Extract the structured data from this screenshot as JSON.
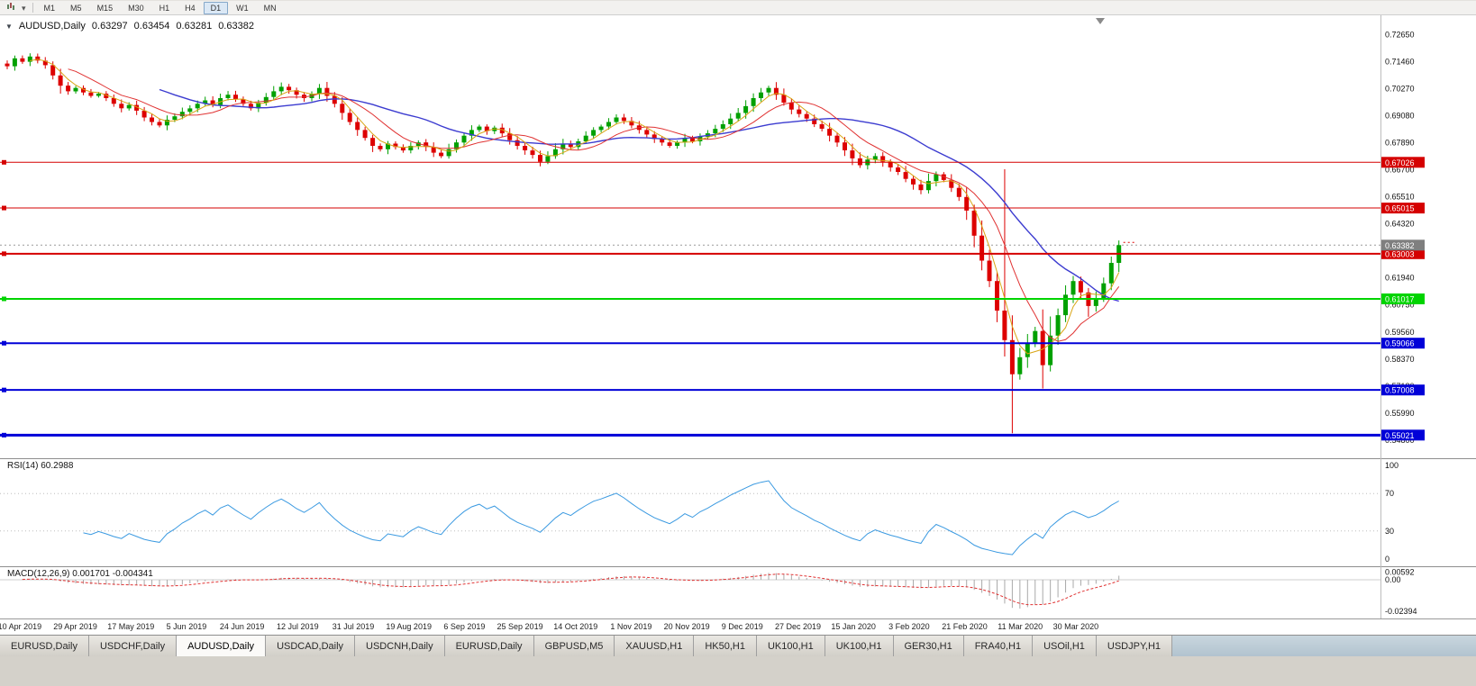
{
  "toolbar": {
    "timeframes": [
      "M1",
      "M5",
      "M15",
      "M30",
      "H1",
      "H4",
      "D1",
      "W1",
      "MN"
    ],
    "active_timeframe": "D1"
  },
  "header": {
    "symbol": "AUDUSD,Daily",
    "open": "0.63297",
    "high": "0.63454",
    "low": "0.63281",
    "close": "0.63382"
  },
  "price_axis": {
    "ticks": [
      "0.72650",
      "0.71460",
      "0.70270",
      "0.69080",
      "0.67890",
      "0.66700",
      "0.65510",
      "0.64320",
      "0.63130",
      "0.61940",
      "0.60750",
      "0.59560",
      "0.58370",
      "0.57180",
      "0.55990",
      "0.54800"
    ],
    "current_price": "0.63382"
  },
  "hlines": [
    {
      "price": 0.67026,
      "label": "0.67026",
      "color": "#d50000",
      "width": 1
    },
    {
      "price": 0.65015,
      "label": "0.65015",
      "color": "#d50000",
      "width": 1
    },
    {
      "price": 0.63003,
      "label": "0.63003",
      "color": "#d50000",
      "width": 2
    },
    {
      "price": 0.61017,
      "label": "0.61017",
      "color": "#00d400",
      "width": 2
    },
    {
      "price": 0.59066,
      "label": "0.59066",
      "color": "#0000d8",
      "width": 2
    },
    {
      "price": 0.57008,
      "label": "0.57008",
      "color": "#0000d8",
      "width": 2
    },
    {
      "price": 0.55021,
      "label": "0.55021",
      "color": "#0000d8",
      "width": 3
    }
  ],
  "rsi": {
    "label": "RSI(14) 60.2988",
    "axis_ticks": [
      "100",
      "70",
      "30",
      "0"
    ],
    "levels": [
      70,
      30
    ]
  },
  "macd": {
    "label": "MACD(12,26,9) 0.001701 -0.004341",
    "axis_ticks": [
      {
        "text": "0.00592",
        "value": 0.00592
      },
      {
        "text": "0.00",
        "value": 0
      },
      {
        "text": "-0.02394",
        "value": -0.02394
      }
    ]
  },
  "time_axis": {
    "labels": [
      "10 Apr 2019",
      "29 Apr 2019",
      "17 May 2019",
      "5 Jun 2019",
      "24 Jun 2019",
      "12 Jul 2019",
      "31 Jul 2019",
      "19 Aug 2019",
      "6 Sep 2019",
      "25 Sep 2019",
      "14 Oct 2019",
      "1 Nov 2019",
      "20 Nov 2019",
      "9 Dec 2019",
      "27 Dec 2019",
      "15 Jan 2020",
      "3 Feb 2020",
      "21 Feb 2020",
      "11 Mar 2020",
      "30 Mar 2020"
    ]
  },
  "tabs": {
    "items": [
      "EURUSD,Daily",
      "USDCHF,Daily",
      "AUDUSD,Daily",
      "USDCAD,Daily",
      "USDCNH,Daily",
      "EURUSD,Daily",
      "GBPUSD,M5",
      "XAUUSD,H1",
      "HK50,H1",
      "UK100,H1",
      "UK100,H1",
      "GER30,H1",
      "FRA40,H1",
      "USOil,H1",
      "USDJPY,H1"
    ],
    "active_index": 2
  },
  "colors": {
    "bull": "#00a000",
    "bear": "#dd0000",
    "ma_slow": "#3c3cd0",
    "ma_mid": "#e03232",
    "ma_fast": "#d9a514",
    "rsi": "#3b9ae1",
    "macd_hist": "#a9a9a9",
    "macd_signal": "#e03232",
    "price_badge": "#7f7f7f"
  },
  "chart_data": {
    "type": "candlestick",
    "symbol": "AUDUSD",
    "timeframe": "Daily",
    "title": "AUDUSD,Daily",
    "ohlc_display": [
      0.63297,
      0.63454,
      0.63281,
      0.63382
    ],
    "y_range": [
      0.548,
      0.7265
    ],
    "x_labels": [
      "10 Apr 2019",
      "29 Apr 2019",
      "17 May 2019",
      "5 Jun 2019",
      "24 Jun 2019",
      "12 Jul 2019",
      "31 Jul 2019",
      "19 Aug 2019",
      "6 Sep 2019",
      "25 Sep 2019",
      "14 Oct 2019",
      "1 Nov 2019",
      "20 Nov 2019",
      "9 Dec 2019",
      "27 Dec 2019",
      "15 Jan 2020",
      "3 Feb 2020",
      "21 Feb 2020",
      "11 Mar 2020",
      "30 Mar 2020"
    ],
    "closes": [
      0.7125,
      0.716,
      0.7145,
      0.7168,
      0.715,
      0.713,
      0.7085,
      0.704,
      0.7015,
      0.703,
      0.701,
      0.6995,
      0.7005,
      0.6985,
      0.696,
      0.694,
      0.6955,
      0.693,
      0.69,
      0.688,
      0.6865,
      0.689,
      0.6905,
      0.6925,
      0.694,
      0.696,
      0.6975,
      0.6955,
      0.6985,
      0.7,
      0.698,
      0.696,
      0.694,
      0.6965,
      0.699,
      0.7015,
      0.7035,
      0.702,
      0.7,
      0.6985,
      0.7005,
      0.703,
      0.6995,
      0.696,
      0.692,
      0.688,
      0.6845,
      0.681,
      0.6775,
      0.676,
      0.6785,
      0.677,
      0.6755,
      0.6775,
      0.679,
      0.677,
      0.6745,
      0.673,
      0.676,
      0.679,
      0.682,
      0.6845,
      0.686,
      0.684,
      0.6855,
      0.683,
      0.68,
      0.6775,
      0.6755,
      0.6735,
      0.6705,
      0.673,
      0.676,
      0.6785,
      0.677,
      0.6795,
      0.682,
      0.6845,
      0.686,
      0.688,
      0.69,
      0.6885,
      0.6865,
      0.6845,
      0.6825,
      0.6805,
      0.679,
      0.6775,
      0.679,
      0.681,
      0.6795,
      0.6815,
      0.683,
      0.685,
      0.687,
      0.6895,
      0.692,
      0.695,
      0.6985,
      0.701,
      0.703,
      0.7,
      0.6965,
      0.6935,
      0.6915,
      0.6895,
      0.687,
      0.685,
      0.682,
      0.679,
      0.6755,
      0.672,
      0.669,
      0.6715,
      0.673,
      0.6705,
      0.668,
      0.666,
      0.663,
      0.6605,
      0.658,
      0.662,
      0.665,
      0.6625,
      0.659,
      0.655,
      0.649,
      0.638,
      0.627,
      0.618,
      0.605,
      0.592,
      0.577,
      0.5845,
      0.5905,
      0.596,
      0.581,
      0.594,
      0.603,
      0.612,
      0.618,
      0.613,
      0.607,
      0.6105,
      0.617,
      0.626,
      0.6338
    ],
    "wick_overrides": {
      "131": [
        0.6672,
        null
      ],
      "132": [
        null,
        0.551
      ]
    },
    "horizontal_levels": [
      0.67026,
      0.65015,
      0.63003,
      0.61017,
      0.59066,
      0.57008,
      0.55021
    ],
    "indicators": {
      "rsi_label_value": 60.2988,
      "macd_label_values": [
        0.001701,
        -0.004341
      ]
    }
  }
}
